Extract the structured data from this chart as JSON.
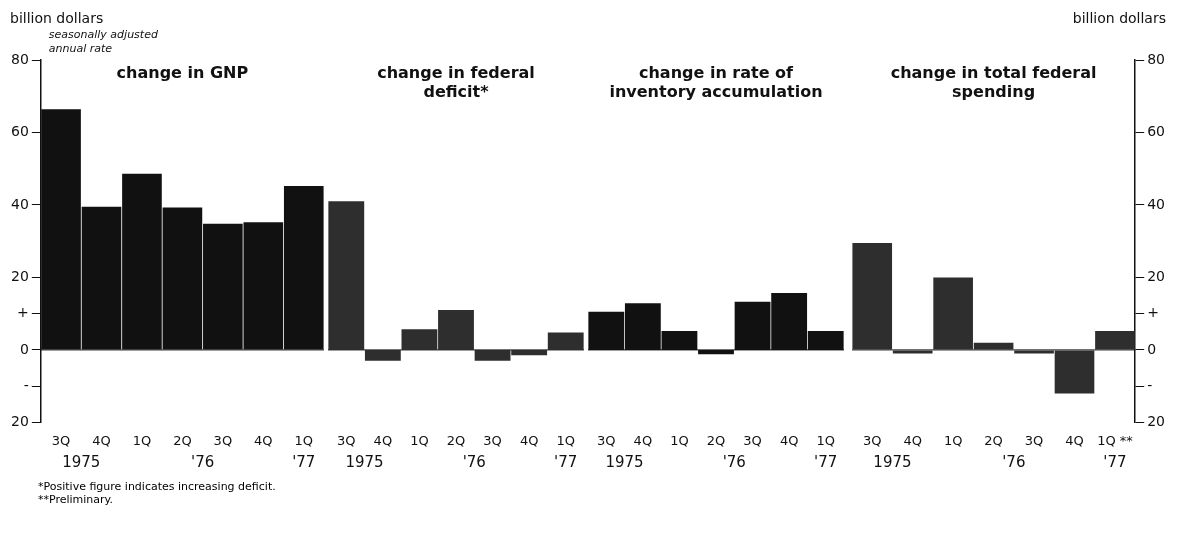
{
  "chart_data": [
    {
      "type": "bar",
      "title": "change in GNP",
      "ylabel": "billion dollars",
      "categories": [
        "3Q",
        "4Q",
        "1Q",
        "2Q",
        "3Q",
        "4Q",
        "1Q"
      ],
      "series": [
        {
          "color": "#111111",
          "values": [
            66.4,
            39.5,
            48.6,
            39.3,
            34.8,
            35.2,
            45.2
          ]
        }
      ],
      "ylim": [
        -20,
        80
      ],
      "yticks": [
        {
          "value": -20,
          "label": "20"
        },
        {
          "value": -10,
          "label": "-"
        },
        0,
        {
          "value": 10,
          "label": "+"
        },
        20,
        40,
        60,
        80
      ],
      "ref_lines": [
        {
          "axis": "y",
          "value": 0
        }
      ],
      "legend": false,
      "annotations": [
        "1975",
        "'76",
        "'77",
        "seasonally adjusted annual rate",
        "*Positive figure indicates increasing deficit.",
        "**Preliminary."
      ]
    },
    {
      "type": "bar",
      "title": "change in federal deficit*",
      "categories": [
        "3Q",
        "4Q",
        "1Q",
        "2Q",
        "3Q",
        "4Q",
        "1Q"
      ],
      "series": [
        {
          "color": "#2e2e2e",
          "values": [
            41,
            -3,
            5.7,
            11,
            -3,
            -1.5,
            4.8
          ]
        }
      ],
      "ylim": [
        -20,
        80
      ],
      "tick_labels": "x",
      "ref_lines": [
        {
          "axis": "y",
          "value": 0
        }
      ],
      "legend": false,
      "annotations": [
        "1975",
        "'76",
        "'77"
      ]
    },
    {
      "type": "bar",
      "title": "change in rate of inventory accumulation",
      "categories": [
        "3Q",
        "4Q",
        "1Q",
        "2Q",
        "3Q",
        "4Q",
        "1Q"
      ],
      "series": [
        {
          "color": "#111111",
          "values": [
            10.5,
            12.9,
            5.2,
            -1.2,
            13.3,
            15.7,
            5.2
          ]
        }
      ],
      "ylim": [
        -20,
        80
      ],
      "tick_labels": "x",
      "ref_lines": [
        {
          "axis": "y",
          "value": 0
        }
      ],
      "legend": false,
      "annotations": [
        "1975",
        "'76",
        "'77"
      ]
    },
    {
      "type": "bar",
      "title": "change in total federal spending",
      "y2label": "billion dollars",
      "categories": [
        "3Q",
        "4Q",
        "1Q",
        "2Q",
        "3Q",
        "4Q",
        "1Q **"
      ],
      "series": [
        {
          "color": "#2e2e2e",
          "values": [
            29.5,
            -1,
            20,
            2,
            -1,
            -12,
            5.2
          ],
          "axis": "y2"
        }
      ],
      "y2lim": [
        -20,
        80
      ],
      "y2ticks": [
        {
          "value": -20,
          "label": "20"
        },
        {
          "value": -10,
          "label": "-"
        },
        0,
        {
          "value": 10,
          "label": "+"
        },
        20,
        40,
        60,
        80
      ],
      "ref_lines": [
        {
          "axis": "y2",
          "value": 0
        }
      ],
      "legend": false,
      "annotations": [
        "1975",
        "'76",
        "'77"
      ]
    }
  ]
}
